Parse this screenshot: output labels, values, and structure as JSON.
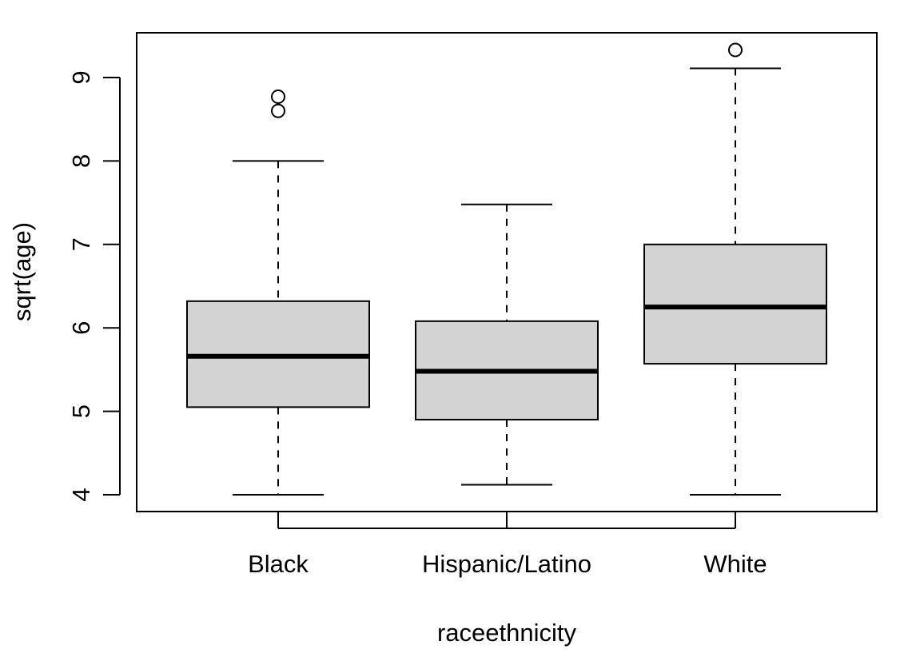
{
  "chart_data": {
    "type": "boxplot",
    "xlabel": "raceethnicity",
    "ylabel": "sqrt(age)",
    "ylim": [
      3.8,
      9.55
    ],
    "yticks": [
      4,
      5,
      6,
      7,
      8,
      9
    ],
    "yticks_labels": [
      "4",
      "5",
      "6",
      "7",
      "8",
      "9"
    ],
    "grid": false,
    "legend": "none",
    "box_fill": "#d3d3d3",
    "line_color": "#000000",
    "categories": [
      "Black",
      "Hispanic/Latino",
      "White"
    ],
    "boxes": [
      {
        "category": "Black",
        "whisker_low": 4.0,
        "q1": 5.05,
        "median": 5.66,
        "q3": 6.32,
        "whisker_high": 8.0,
        "outliers": [
          8.6,
          8.77
        ]
      },
      {
        "category": "Hispanic/Latino",
        "whisker_low": 4.12,
        "q1": 4.9,
        "median": 5.48,
        "q3": 6.08,
        "whisker_high": 7.48,
        "outliers": []
      },
      {
        "category": "White",
        "whisker_low": 4.0,
        "q1": 5.57,
        "median": 6.25,
        "q3": 7.0,
        "whisker_high": 9.11,
        "outliers": [
          9.33
        ]
      }
    ]
  }
}
